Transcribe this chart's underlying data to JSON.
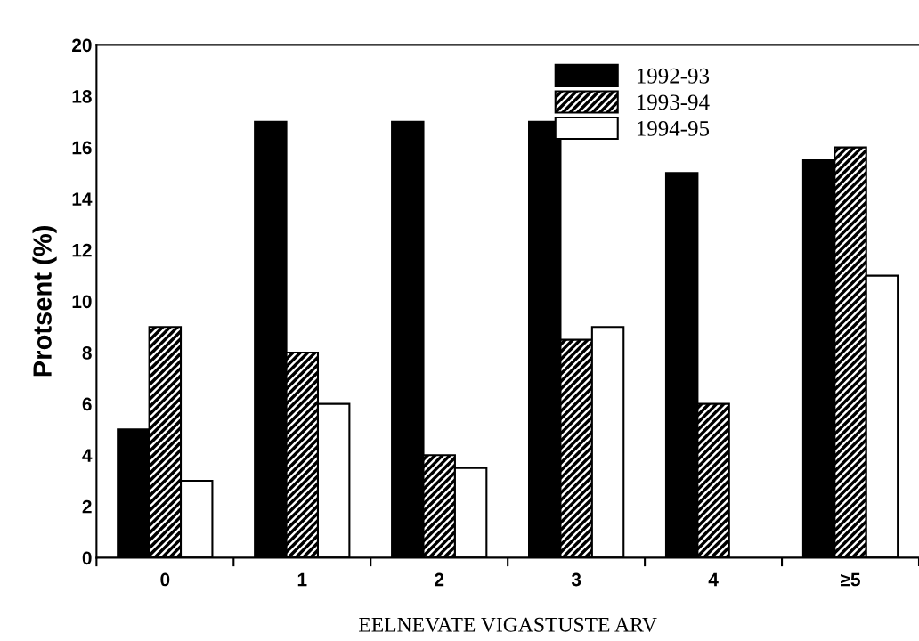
{
  "chart_data": {
    "type": "bar",
    "xlabel": "EELNEVATE VIGASTUSTE ARV",
    "ylabel": "Protsent (%)",
    "categories": [
      "0",
      "1",
      "2",
      "3",
      "4",
      "≥5"
    ],
    "series": [
      {
        "name": "1992-93",
        "color": "#000000",
        "values": [
          5,
          17,
          17,
          17,
          15,
          15.5
        ]
      },
      {
        "name": "1993-94",
        "color": "#000000",
        "values": [
          9,
          8,
          4,
          8.5,
          6,
          16
        ]
      },
      {
        "name": "1994-95",
        "color": "#ffffff",
        "values": [
          3,
          6,
          3.5,
          9,
          null,
          11
        ]
      }
    ],
    "ylim": [
      0,
      20
    ],
    "yticks": [
      0,
      2,
      4,
      6,
      8,
      10,
      12,
      14,
      16,
      18,
      20
    ],
    "grid": false,
    "legend": "top right"
  }
}
